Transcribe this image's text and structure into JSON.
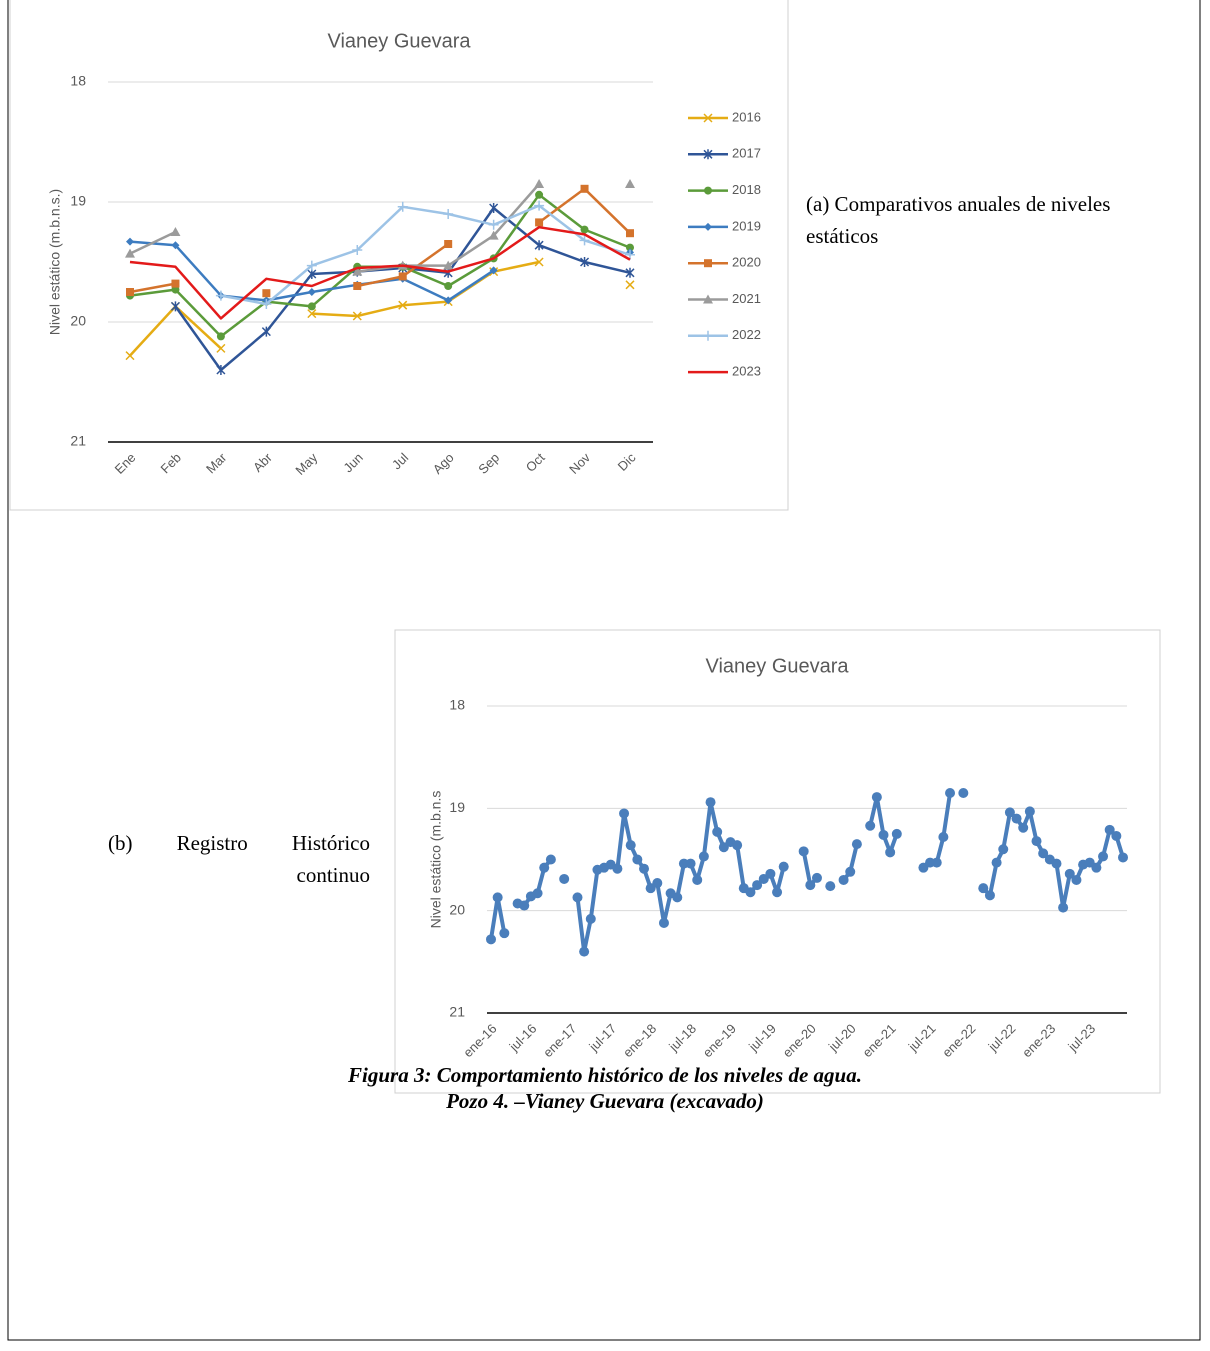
{
  "chart_data": [
    {
      "type": "line",
      "title": "Vianey Guevara",
      "y_label": "Nivel estático (m.b.n.s.)",
      "categories": [
        "Ene",
        "Feb",
        "Mar",
        "Abr",
        "May",
        "Jun",
        "Jul",
        "Ago",
        "Sep",
        "Oct",
        "Nov",
        "Dic"
      ],
      "ylim": [
        18,
        21
      ],
      "yticks": [
        18,
        19,
        20,
        21
      ],
      "y_inverted": true,
      "grid": true,
      "legend": "right",
      "series": [
        {
          "name": "2016",
          "color": "#e5ac14",
          "marker": "x",
          "values": [
            20.28,
            19.87,
            20.22,
            null,
            19.93,
            19.95,
            19.86,
            19.83,
            19.58,
            19.5,
            null,
            19.69
          ]
        },
        {
          "name": "2017",
          "color": "#2f5597",
          "marker": "asterisk",
          "values": [
            null,
            19.87,
            20.4,
            20.08,
            19.6,
            19.58,
            19.55,
            19.59,
            19.05,
            19.36,
            19.5,
            19.59
          ]
        },
        {
          "name": "2018",
          "color": "#5b9b3a",
          "marker": "circle",
          "values": [
            19.78,
            19.73,
            20.12,
            19.83,
            19.87,
            19.54,
            19.54,
            19.7,
            19.47,
            18.94,
            19.23,
            19.38
          ]
        },
        {
          "name": "2019",
          "color": "#3d7cc0",
          "marker": "diamond",
          "values": [
            19.33,
            19.36,
            19.78,
            19.82,
            19.75,
            19.69,
            19.64,
            19.82,
            19.57,
            null,
            null,
            19.42
          ]
        },
        {
          "name": "2020",
          "color": "#d4732c",
          "marker": "square",
          "values": [
            19.75,
            19.68,
            null,
            19.76,
            null,
            19.7,
            19.62,
            19.35,
            null,
            19.17,
            18.89,
            19.26
          ]
        },
        {
          "name": "2021",
          "color": "#9b9b9b",
          "marker": "triangle",
          "values": [
            19.43,
            19.25,
            null,
            null,
            null,
            19.58,
            19.53,
            19.53,
            19.28,
            18.85,
            null,
            18.85
          ]
        },
        {
          "name": "2022",
          "color": "#9dc3e6",
          "marker": "plus",
          "values": [
            null,
            null,
            19.78,
            19.85,
            19.53,
            19.4,
            19.04,
            19.1,
            19.19,
            19.03,
            19.32,
            19.44
          ]
        },
        {
          "name": "2023",
          "color": "#e31a1a",
          "marker": "none",
          "values": [
            19.5,
            19.54,
            19.97,
            19.64,
            19.7,
            19.55,
            19.53,
            19.58,
            19.47,
            19.21,
            19.27,
            19.48
          ]
        }
      ]
    },
    {
      "type": "line",
      "title": "Vianey Guevara",
      "y_label": "Nivel estático (m.b.n.s",
      "categories": [
        "ene-16",
        null,
        null,
        null,
        null,
        null,
        "jul-16",
        null,
        null,
        null,
        null,
        null,
        "ene-17",
        null,
        null,
        null,
        null,
        null,
        "jul-17",
        null,
        null,
        null,
        null,
        null,
        "ene-18",
        null,
        null,
        null,
        null,
        null,
        "jul-18",
        null,
        null,
        null,
        null,
        null,
        "ene-19",
        null,
        null,
        null,
        null,
        null,
        "jul-19",
        null,
        null,
        null,
        null,
        null,
        "ene-20",
        null,
        null,
        null,
        null,
        null,
        "jul-20",
        null,
        null,
        null,
        null,
        null,
        "ene-21",
        null,
        null,
        null,
        null,
        null,
        "jul-21",
        null,
        null,
        null,
        null,
        null,
        "ene-22",
        null,
        null,
        null,
        null,
        null,
        "jul-22",
        null,
        null,
        null,
        null,
        null,
        "ene-23",
        null,
        null,
        null,
        null,
        null,
        "jul-23",
        null,
        null,
        null,
        null,
        null
      ],
      "ylim": [
        18,
        21
      ],
      "yticks": [
        18,
        19,
        20,
        21
      ],
      "y_inverted": true,
      "grid": true,
      "color": "#4a7ebb",
      "marker": "circle",
      "values": [
        20.28,
        19.87,
        20.22,
        null,
        19.93,
        19.95,
        19.86,
        19.83,
        19.58,
        19.5,
        null,
        19.69,
        null,
        19.87,
        20.4,
        20.08,
        19.6,
        19.58,
        19.55,
        19.59,
        19.05,
        19.36,
        19.5,
        19.59,
        19.78,
        19.73,
        20.12,
        19.83,
        19.87,
        19.54,
        19.54,
        19.7,
        19.47,
        18.94,
        19.23,
        19.38,
        19.33,
        19.36,
        19.78,
        19.82,
        19.75,
        19.69,
        19.64,
        19.82,
        19.57,
        null,
        null,
        19.42,
        19.75,
        19.68,
        null,
        19.76,
        null,
        19.7,
        19.62,
        19.35,
        null,
        19.17,
        18.89,
        19.26,
        19.43,
        19.25,
        null,
        null,
        null,
        19.58,
        19.53,
        19.53,
        19.28,
        18.85,
        null,
        18.85,
        null,
        null,
        19.78,
        19.85,
        19.53,
        19.4,
        19.04,
        19.1,
        19.19,
        19.03,
        19.32,
        19.44,
        19.5,
        19.54,
        19.97,
        19.64,
        19.7,
        19.55,
        19.53,
        19.58,
        19.47,
        19.21,
        19.27,
        19.48
      ]
    }
  ],
  "annotations": {
    "a": "(a)   Comparativos anuales de niveles estáticos",
    "b": "(b) Registro Histórico continuo"
  },
  "caption": [
    "Figura 3: Comportamiento histórico de los niveles de agua.",
    "Pozo 4. –Vianey Guevara (excavado)"
  ]
}
